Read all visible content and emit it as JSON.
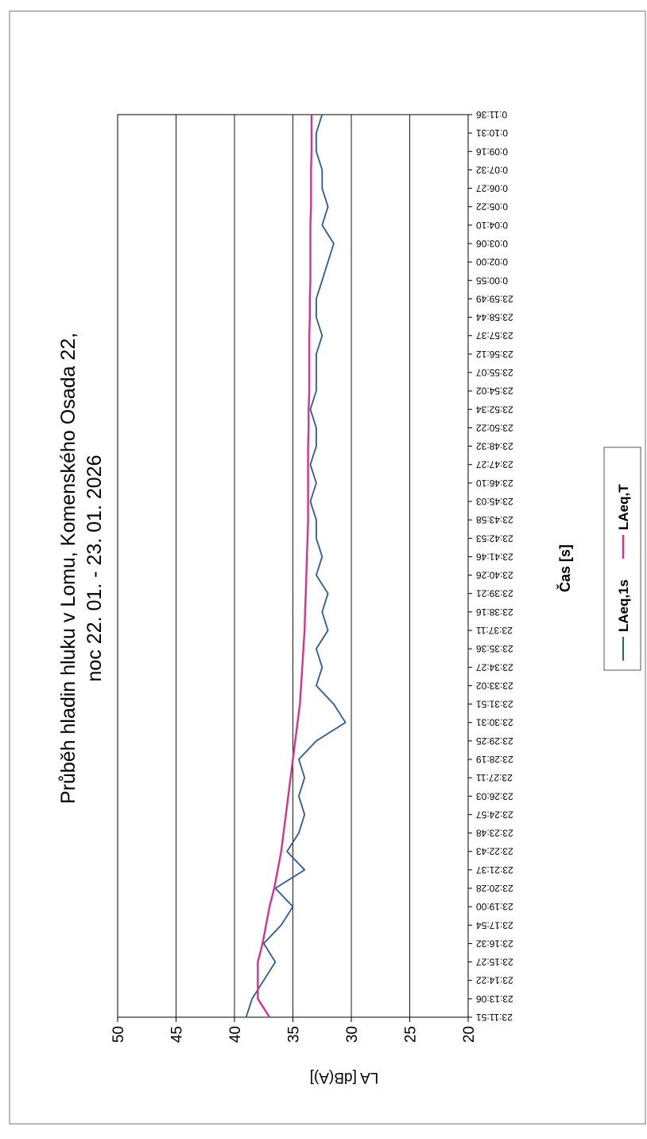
{
  "chart_data": {
    "type": "line",
    "title": "Průběh hladin hluku v Lomu, Komenského Osada 22,",
    "subtitle": "noc 22. 01. - 23. 01. 2026",
    "xlabel": "Čas [s]",
    "ylabel": "LA [dB(A)]",
    "ylim": [
      20,
      50
    ],
    "y_ticks": [
      "20",
      "25",
      "30",
      "35",
      "40",
      "45",
      "50"
    ],
    "grid": true,
    "legend_position": "bottom",
    "x_ticks": [
      "23:11:51",
      "23:13:06",
      "23:14:22",
      "23:15:27",
      "23:16:32",
      "23:17:54",
      "23:19:00",
      "23:20:28",
      "23:21:37",
      "23:22:43",
      "23:23:48",
      "23:24:57",
      "23:26:03",
      "23:27:11",
      "23:28:19",
      "23:29:25",
      "23:30:31",
      "23:31:51",
      "23:33:02",
      "23:34:27",
      "23:35:36",
      "23:37:11",
      "23:38:16",
      "23:39:21",
      "23:40:26",
      "23:41:46",
      "23:42:53",
      "23:43:58",
      "23:45:03",
      "23:46:10",
      "23:47:27",
      "23:48:32",
      "23:50:22",
      "23:52:34",
      "23:54:02",
      "23:55:07",
      "23:56:12",
      "23:57:37",
      "23:58:44",
      "23:59:49",
      "0:00:55",
      "0:02:00",
      "0:03:06",
      "0:04:10",
      "0:05:22",
      "0:06:27",
      "0:07:32",
      "0:09:16",
      "0:10:31",
      "0:11:36"
    ],
    "series": [
      {
        "name": "LAeq,1s",
        "color": "#2a5a9c",
        "values": [
          39.0,
          38.5,
          37.5,
          36.5,
          37.5,
          36.0,
          35.0,
          36.5,
          34.0,
          35.5,
          34.5,
          34.0,
          34.5,
          34.0,
          34.5,
          33.0,
          30.5,
          31.5,
          33.0,
          32.5,
          33.0,
          32.0,
          32.5,
          32.0,
          33.0,
          32.5,
          33.0,
          33.0,
          33.5,
          33.0,
          33.5,
          33.0,
          33.0,
          33.5,
          33.0,
          33.0,
          33.0,
          32.5,
          33.0,
          33.0,
          32.5,
          32.0,
          31.5,
          32.5,
          32.0,
          32.5,
          32.5,
          33.0,
          33.0,
          32.5
        ]
      },
      {
        "name": "LAeq,T",
        "color": "#d6338c",
        "values": [
          37.0,
          38.0,
          38.0,
          38.0,
          37.6,
          37.3,
          37.0,
          36.6,
          36.3,
          36.0,
          35.8,
          35.6,
          35.4,
          35.2,
          35.0,
          34.8,
          34.6,
          34.4,
          34.3,
          34.2,
          34.1,
          34.0,
          33.95,
          33.9,
          33.85,
          33.8,
          33.75,
          33.7,
          33.7,
          33.7,
          33.7,
          33.7,
          33.65,
          33.65,
          33.6,
          33.6,
          33.6,
          33.6,
          33.55,
          33.55,
          33.5,
          33.5,
          33.5,
          33.5,
          33.45,
          33.45,
          33.45,
          33.4,
          33.4,
          33.4
        ]
      }
    ]
  }
}
